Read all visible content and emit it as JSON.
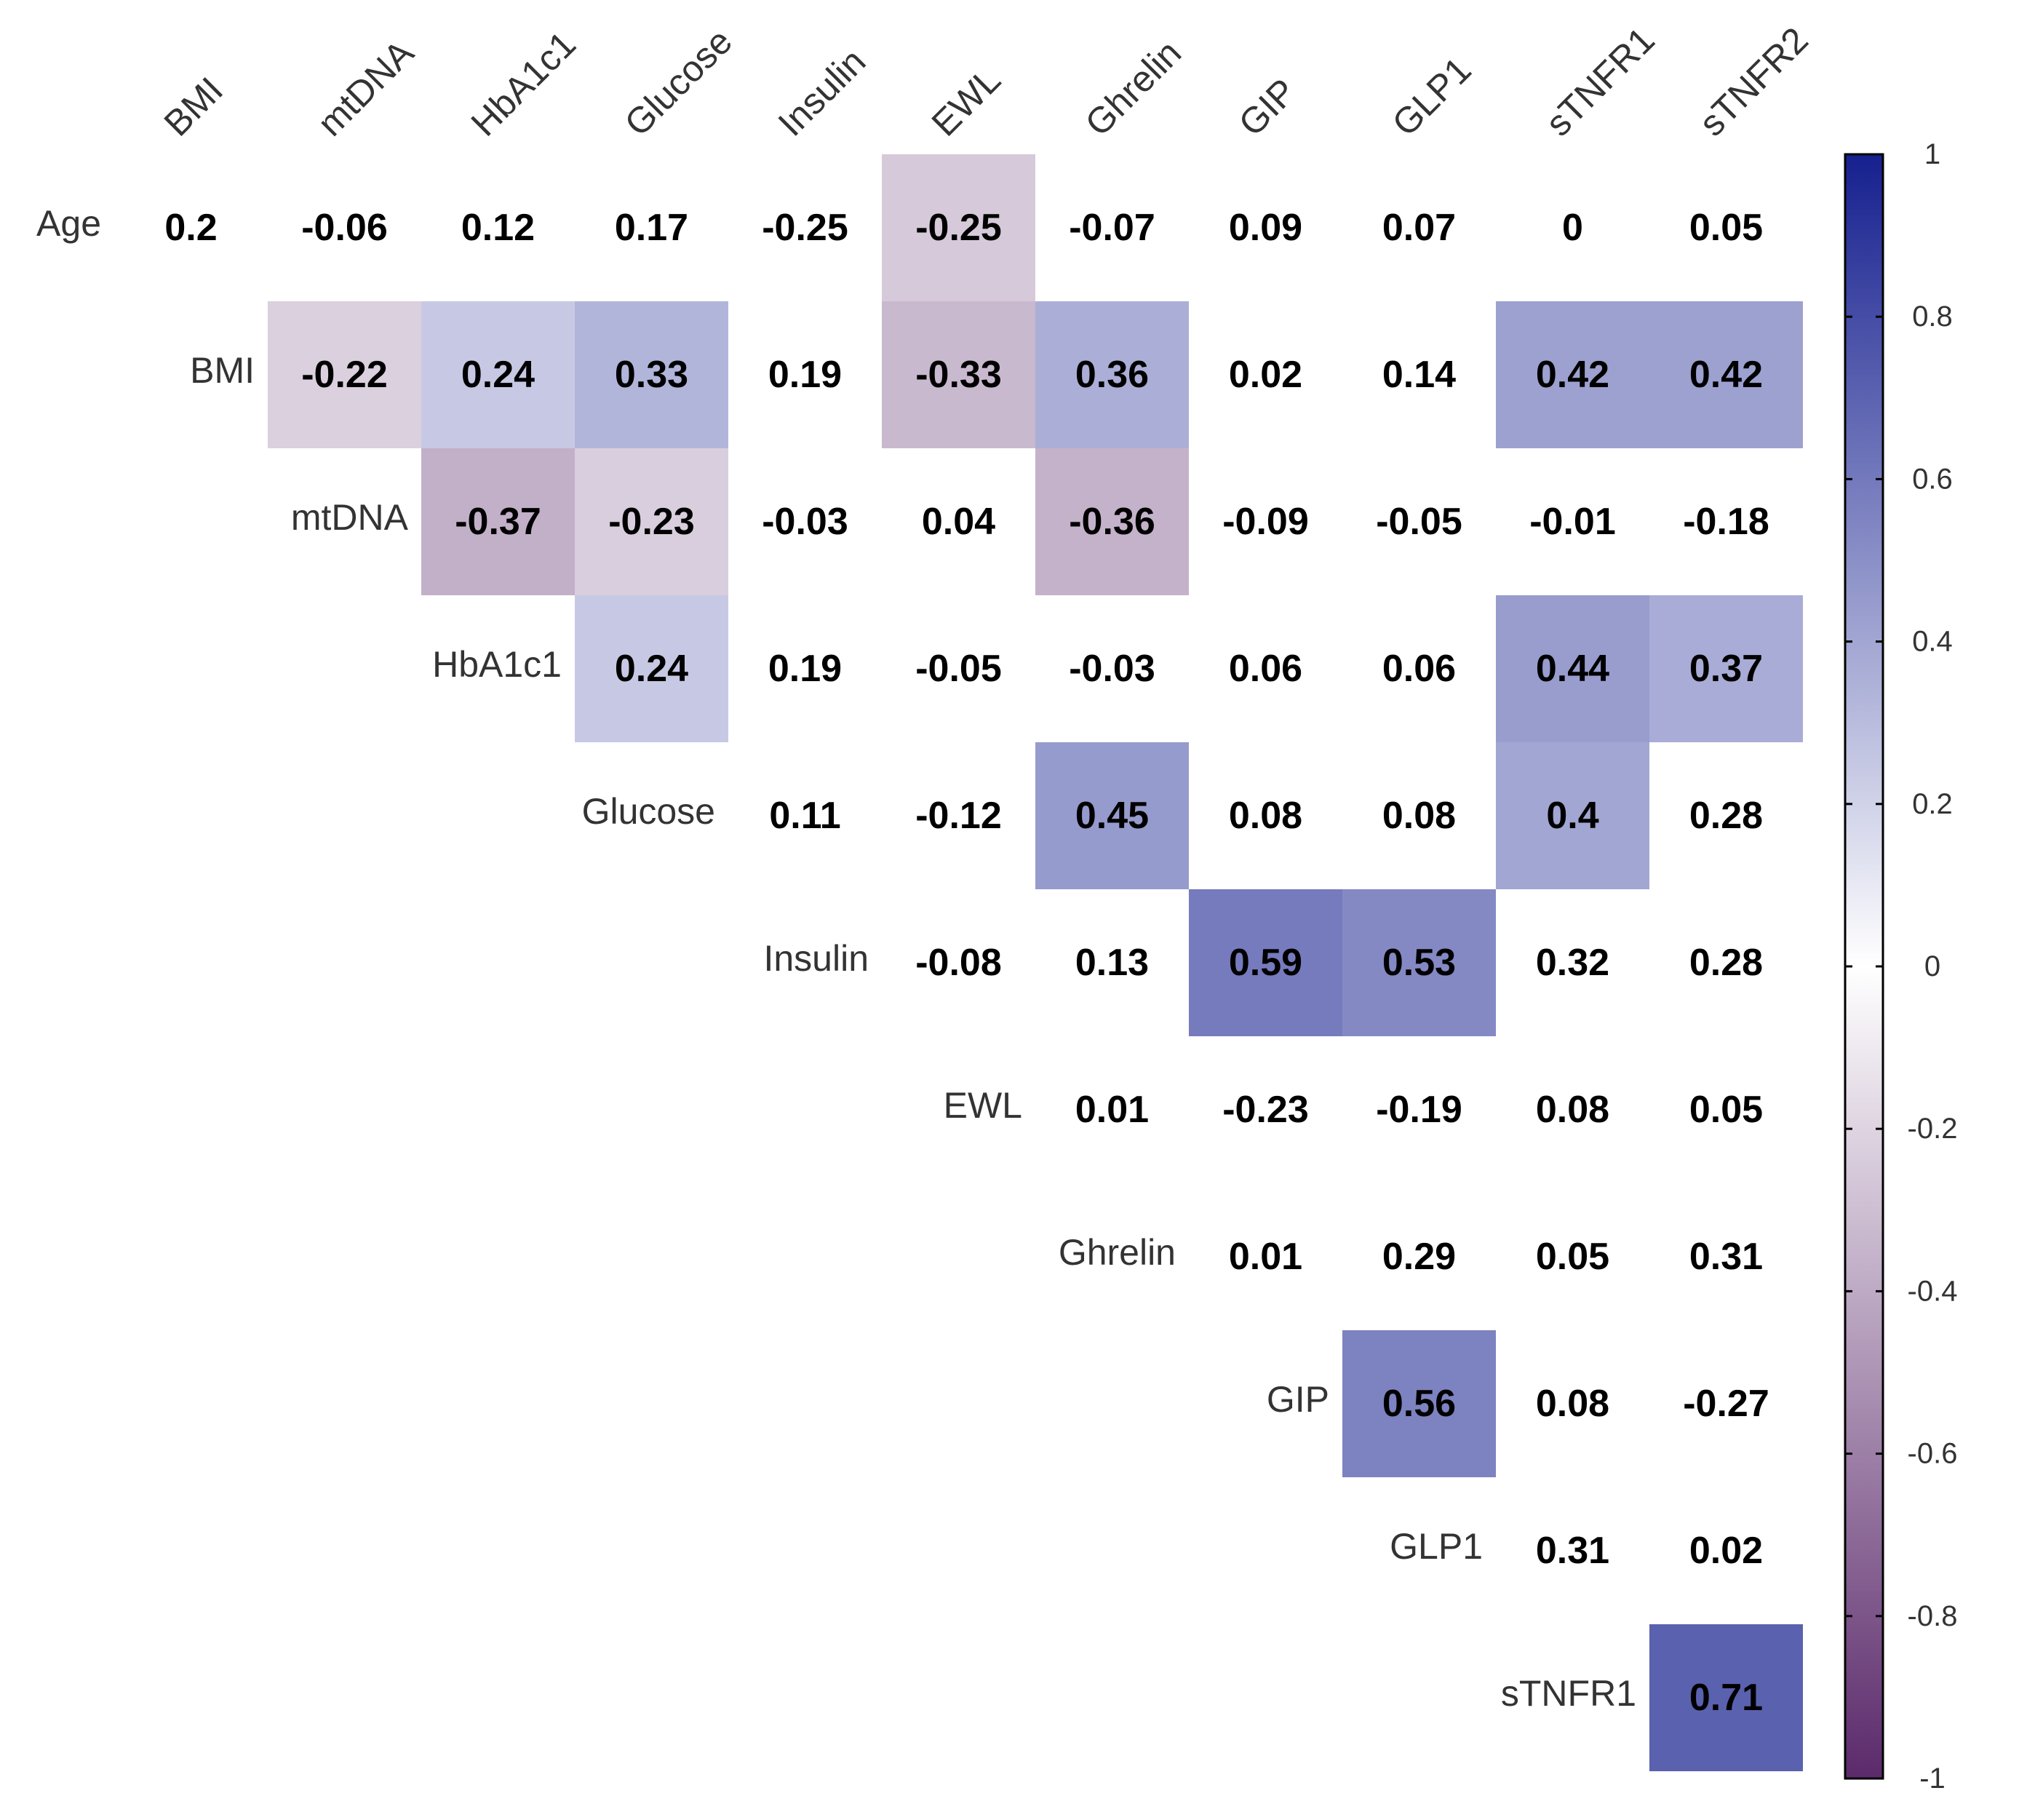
{
  "chart_data": {
    "type": "heatmap",
    "subtype": "upper-triangular correlation matrix",
    "title": "",
    "column_labels": [
      "BMI",
      "mtDNA",
      "HbA1c1",
      "Glucose",
      "Insulin",
      "EWL",
      "Ghrelin",
      "GIP",
      "GLP1",
      "sTNFR1",
      "sTNFR2"
    ],
    "row_labels": [
      "Age",
      "BMI",
      "mtDNA",
      "HbA1c1",
      "Glucose",
      "Insulin",
      "EWL",
      "Ghrelin",
      "GIP",
      "GLP1",
      "sTNFR1"
    ],
    "cells": [
      [
        {
          "value": 0.2,
          "label": "0.2",
          "shaded": false
        },
        {
          "value": -0.06,
          "label": "-0.06",
          "shaded": false
        },
        {
          "value": 0.12,
          "label": "0.12",
          "shaded": false
        },
        {
          "value": 0.17,
          "label": "0.17",
          "shaded": false
        },
        {
          "value": -0.25,
          "label": "-0.25",
          "shaded": false
        },
        {
          "value": -0.25,
          "label": "-0.25",
          "shaded": true
        },
        {
          "value": -0.07,
          "label": "-0.07",
          "shaded": false
        },
        {
          "value": 0.09,
          "label": "0.09",
          "shaded": false
        },
        {
          "value": 0.07,
          "label": "0.07",
          "shaded": false
        },
        {
          "value": 0,
          "label": "0",
          "shaded": false
        },
        {
          "value": 0.05,
          "label": "0.05",
          "shaded": false
        }
      ],
      [
        {
          "value": -0.22,
          "label": "-0.22",
          "shaded": true
        },
        {
          "value": 0.24,
          "label": "0.24",
          "shaded": true
        },
        {
          "value": 0.33,
          "label": "0.33",
          "shaded": true
        },
        {
          "value": 0.19,
          "label": "0.19",
          "shaded": false
        },
        {
          "value": -0.33,
          "label": "-0.33",
          "shaded": true
        },
        {
          "value": 0.36,
          "label": "0.36",
          "shaded": true
        },
        {
          "value": 0.02,
          "label": "0.02",
          "shaded": false
        },
        {
          "value": 0.14,
          "label": "0.14",
          "shaded": false
        },
        {
          "value": 0.42,
          "label": "0.42",
          "shaded": true
        },
        {
          "value": 0.42,
          "label": "0.42",
          "shaded": true
        }
      ],
      [
        {
          "value": -0.37,
          "label": "-0.37",
          "shaded": true
        },
        {
          "value": -0.23,
          "label": "-0.23",
          "shaded": true
        },
        {
          "value": -0.03,
          "label": "-0.03",
          "shaded": false
        },
        {
          "value": 0.04,
          "label": "0.04",
          "shaded": false
        },
        {
          "value": -0.36,
          "label": "-0.36",
          "shaded": true
        },
        {
          "value": -0.09,
          "label": "-0.09",
          "shaded": false
        },
        {
          "value": -0.05,
          "label": "-0.05",
          "shaded": false
        },
        {
          "value": -0.01,
          "label": "-0.01",
          "shaded": false
        },
        {
          "value": -0.18,
          "label": "-0.18",
          "shaded": false
        }
      ],
      [
        {
          "value": 0.24,
          "label": "0.24",
          "shaded": true
        },
        {
          "value": 0.19,
          "label": "0.19",
          "shaded": false
        },
        {
          "value": -0.05,
          "label": "-0.05",
          "shaded": false
        },
        {
          "value": -0.03,
          "label": "-0.03",
          "shaded": false
        },
        {
          "value": 0.06,
          "label": "0.06",
          "shaded": false
        },
        {
          "value": 0.06,
          "label": "0.06",
          "shaded": false
        },
        {
          "value": 0.44,
          "label": "0.44",
          "shaded": true
        },
        {
          "value": 0.37,
          "label": "0.37",
          "shaded": true
        }
      ],
      [
        {
          "value": 0.11,
          "label": "0.11",
          "shaded": false
        },
        {
          "value": -0.12,
          "label": "-0.12",
          "shaded": false
        },
        {
          "value": 0.45,
          "label": "0.45",
          "shaded": true
        },
        {
          "value": 0.08,
          "label": "0.08",
          "shaded": false
        },
        {
          "value": 0.08,
          "label": "0.08",
          "shaded": false
        },
        {
          "value": 0.4,
          "label": "0.4",
          "shaded": true
        },
        {
          "value": 0.28,
          "label": "0.28",
          "shaded": false
        }
      ],
      [
        {
          "value": -0.08,
          "label": "-0.08",
          "shaded": false
        },
        {
          "value": 0.13,
          "label": "0.13",
          "shaded": false
        },
        {
          "value": 0.59,
          "label": "0.59",
          "shaded": true
        },
        {
          "value": 0.53,
          "label": "0.53",
          "shaded": true
        },
        {
          "value": 0.32,
          "label": "0.32",
          "shaded": false
        },
        {
          "value": 0.28,
          "label": "0.28",
          "shaded": false
        }
      ],
      [
        {
          "value": 0.01,
          "label": "0.01",
          "shaded": false
        },
        {
          "value": -0.23,
          "label": "-0.23",
          "shaded": false
        },
        {
          "value": -0.19,
          "label": "-0.19",
          "shaded": false
        },
        {
          "value": 0.08,
          "label": "0.08",
          "shaded": false
        },
        {
          "value": 0.05,
          "label": "0.05",
          "shaded": false
        }
      ],
      [
        {
          "value": 0.01,
          "label": "0.01",
          "shaded": false
        },
        {
          "value": 0.29,
          "label": "0.29",
          "shaded": false
        },
        {
          "value": 0.05,
          "label": "0.05",
          "shaded": false
        },
        {
          "value": 0.31,
          "label": "0.31",
          "shaded": false
        }
      ],
      [
        {
          "value": 0.56,
          "label": "0.56",
          "shaded": true
        },
        {
          "value": 0.08,
          "label": "0.08",
          "shaded": false
        },
        {
          "value": -0.27,
          "label": "-0.27",
          "shaded": false
        }
      ],
      [
        {
          "value": 0.31,
          "label": "0.31",
          "shaded": false
        },
        {
          "value": 0.02,
          "label": "0.02",
          "shaded": false
        }
      ],
      [
        {
          "value": 0.71,
          "label": "0.71",
          "shaded": true
        }
      ]
    ],
    "colorbar": {
      "range": [
        -1,
        1
      ],
      "ticks": [
        1,
        0.8,
        0.6,
        0.4,
        0.2,
        0,
        -0.2,
        -0.4,
        -0.6,
        -0.8,
        -1
      ],
      "tick_labels": [
        "1",
        "0.8",
        "0.6",
        "0.4",
        "0.2",
        "0",
        "-0.2",
        "-0.4",
        "-0.6",
        "-0.8",
        "-1"
      ],
      "color_low": "#5b2a6b",
      "color_mid": "#ffffff",
      "color_high": "#16208f"
    },
    "legend_position": "right"
  }
}
